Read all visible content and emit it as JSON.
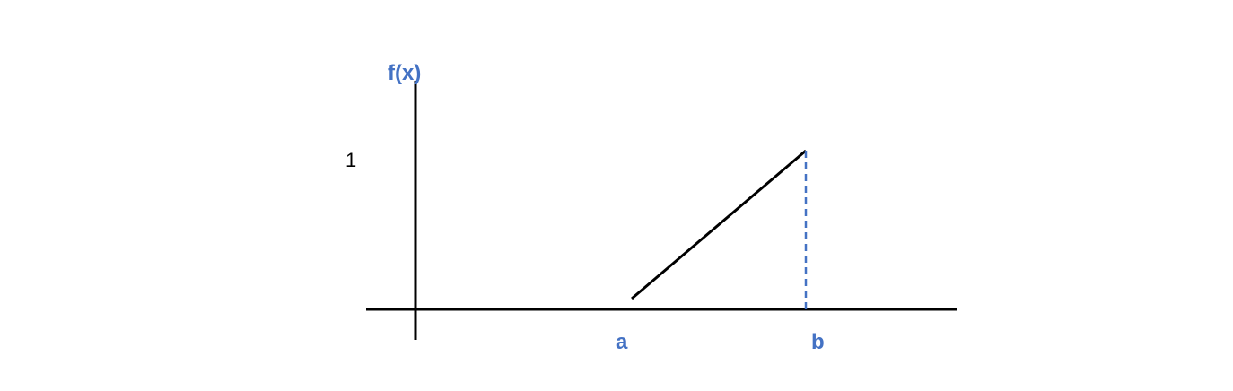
{
  "labels": {
    "y_axis": "f(x)",
    "y_tick_one": "1",
    "x_point_a": "a",
    "x_point_b": "b"
  },
  "colors": {
    "axis": "#000000",
    "function_line": "#000000",
    "dashed_guide": "#4472c4",
    "label_accent": "#4472c4"
  }
}
